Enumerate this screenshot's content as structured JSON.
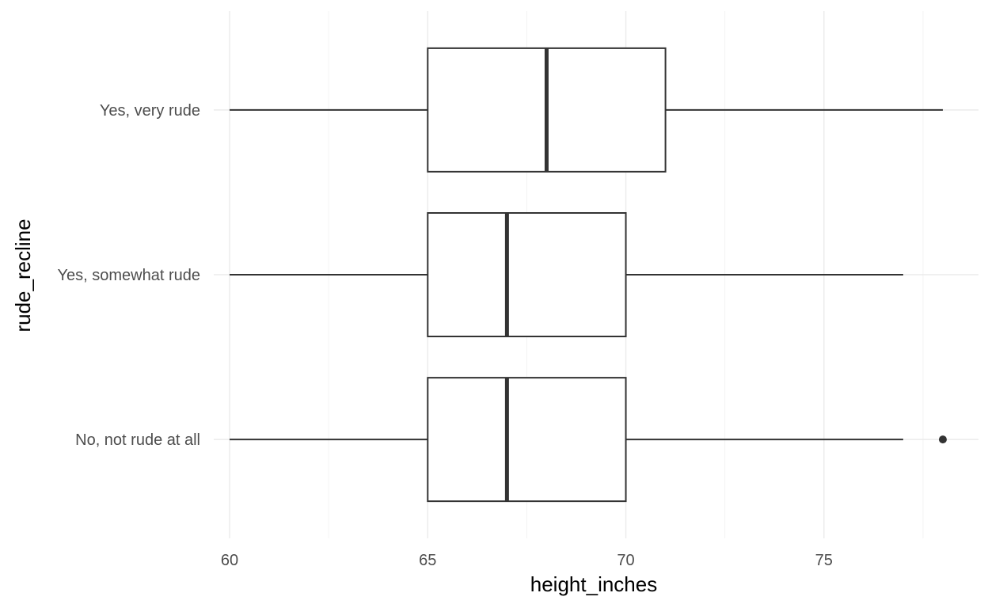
{
  "chart_data": {
    "type": "boxplot",
    "orientation": "horizontal",
    "xlabel": "height_inches",
    "ylabel": "rude_recline",
    "xlim": [
      59.6,
      78.9
    ],
    "x_ticks": [
      60,
      65,
      70,
      75
    ],
    "x_tick_labels": [
      "60",
      "65",
      "70",
      "75"
    ],
    "x_minor_ticks": [
      62.5,
      67.5,
      72.5,
      77.5
    ],
    "grid": true,
    "theme": "minimal",
    "colors": {
      "box_fill": "#ffffff",
      "box_outline": "#333333",
      "grid": "#ebebeb",
      "tick_text": "#4d4d4d"
    },
    "categories": [
      "No, not rude at all",
      "Yes, somewhat rude",
      "Yes, very rude"
    ],
    "boxes": [
      {
        "category": "No, not rude at all",
        "whisker_low": 60,
        "q1": 65,
        "median": 67,
        "q3": 70,
        "whisker_high": 77,
        "outliers": [
          78
        ]
      },
      {
        "category": "Yes, somewhat rude",
        "whisker_low": 60,
        "q1": 65,
        "median": 67,
        "q3": 70,
        "whisker_high": 77,
        "outliers": []
      },
      {
        "category": "Yes, very rude",
        "whisker_low": 60,
        "q1": 65,
        "median": 68,
        "q3": 71,
        "whisker_high": 78,
        "outliers": []
      }
    ]
  }
}
